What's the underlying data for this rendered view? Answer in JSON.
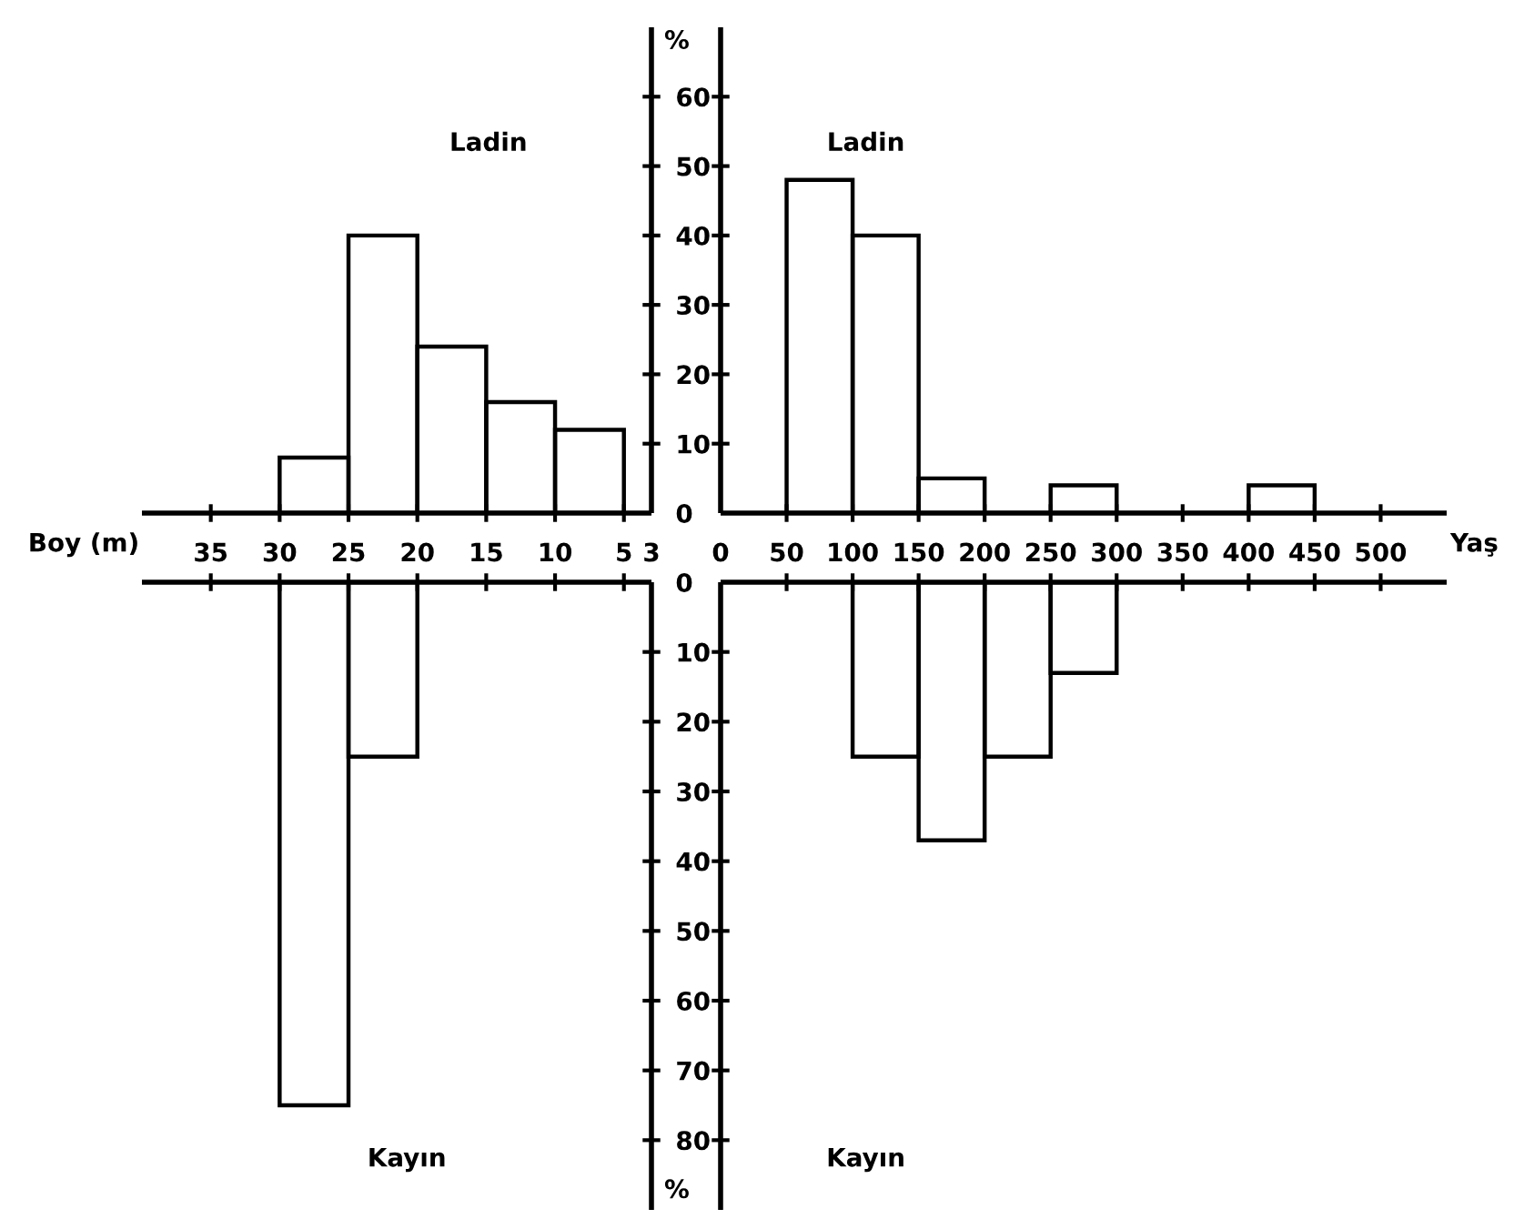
{
  "chart_data": [
    {
      "type": "histogram",
      "title": "Ladin",
      "xlabel": "Boy (m)",
      "ylabel": "%",
      "color": "#000000",
      "bins": [
        30,
        25,
        20,
        15,
        10,
        5
      ],
      "values": [
        8,
        40,
        24,
        16,
        12
      ],
      "xlim": [
        40,
        3
      ],
      "xticks": [
        35,
        30,
        25,
        20,
        15,
        10,
        5,
        3
      ],
      "ylim": [
        0,
        70
      ],
      "yticks": [
        0,
        10,
        20,
        30,
        40,
        50,
        60
      ]
    },
    {
      "type": "histogram",
      "title": "Ladin",
      "xlabel": "Yaş",
      "color": "#000000",
      "bins": [
        50,
        100,
        150,
        200,
        250,
        300,
        350,
        400,
        450
      ],
      "values": [
        48,
        40,
        5,
        0,
        4,
        0,
        0,
        4
      ],
      "xlim": [
        0,
        550
      ],
      "xticks": [
        0,
        50,
        100,
        150,
        200,
        250,
        300,
        350,
        400,
        450,
        500
      ],
      "ylim": [
        0,
        70
      ],
      "yticks": [
        0,
        10,
        20,
        30,
        40,
        50,
        60
      ],
      "tick_labels": "x"
    },
    {
      "type": "histogram",
      "title": "Kayın",
      "ylabel": "%",
      "color": "#000000",
      "bins": [
        30,
        25,
        20
      ],
      "values": [
        75,
        25
      ],
      "xlim": [
        40,
        3
      ],
      "xticks": [
        35,
        30,
        25,
        20,
        15,
        10,
        5,
        3
      ],
      "ylim": [
        90,
        0
      ],
      "yticks": [
        0,
        10,
        20,
        30,
        40,
        50,
        60,
        70,
        80
      ],
      "tick_labels": "y"
    },
    {
      "type": "histogram",
      "title": "Kayın",
      "color": "#000000",
      "bins": [
        100,
        150,
        200,
        250,
        300
      ],
      "values": [
        25,
        37,
        25,
        13
      ],
      "xlim": [
        0,
        550
      ],
      "xticks": [
        0,
        50,
        100,
        150,
        200,
        250,
        300,
        350,
        400,
        450,
        500
      ],
      "ylim": [
        90,
        0
      ],
      "yticks": [
        0,
        10,
        20,
        30,
        40,
        50,
        60,
        70,
        80
      ],
      "tick_labels": false
    }
  ]
}
